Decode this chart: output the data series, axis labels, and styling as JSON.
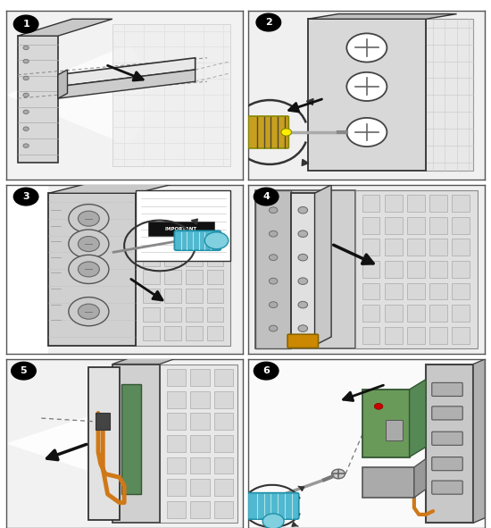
{
  "figure_width": 5.5,
  "figure_height": 5.91,
  "dpi": 100,
  "background_color": "#ffffff",
  "panel_bg": "#ffffff",
  "panel_border_color": "#444444",
  "number_circle_color": "#000000",
  "number_text_color": "#ffffff",
  "number_font_size": 8,
  "light_gray": "#e0e0e0",
  "mid_gray": "#c0c0c0",
  "dark_gray": "#888888",
  "very_light_gray": "#f2f2f2",
  "off_white": "#f8f8f8",
  "screwdriver_gold": "#c8a020",
  "screwdriver_shaft": "#aaaaaa",
  "cyan_color": "#50b8d0",
  "cyan_dark": "#2090a8",
  "orange_cable": "#d07818",
  "green_pcb": "#6a9a5a",
  "panel1_bg": "#f0f0f0",
  "panel2_bg": "#f0f0f0",
  "panel3_bg": "#f0f0f0",
  "panel4_bg": "#f0f0f0",
  "panel5_bg": "#f0f0f0",
  "panel6_bg": "#f8f8f8"
}
